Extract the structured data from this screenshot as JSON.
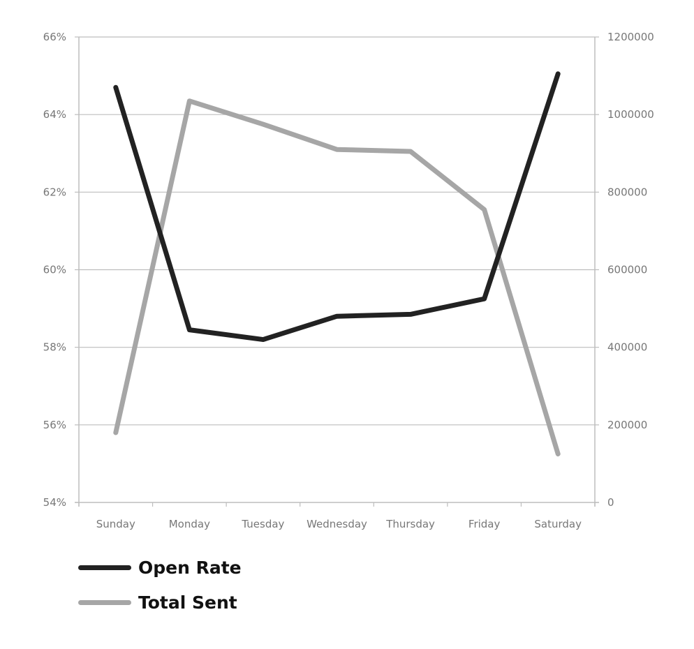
{
  "chart_data": {
    "type": "line",
    "categories": [
      "Sunday",
      "Monday",
      "Tuesday",
      "Wednesday",
      "Thursday",
      "Friday",
      "Saturday"
    ],
    "series": [
      {
        "name": "Open Rate",
        "axis": "left",
        "color": "#222222",
        "values": [
          64.7,
          58.45,
          58.2,
          58.8,
          58.85,
          59.25,
          65.05
        ]
      },
      {
        "name": "Total Sent",
        "axis": "right",
        "color": "#a6a6a6",
        "values": [
          180000,
          1035000,
          975000,
          910000,
          905000,
          755000,
          125000
        ]
      }
    ],
    "y_left": {
      "min": 54,
      "max": 66,
      "step": 2,
      "tick_labels": [
        "54%",
        "56%",
        "58%",
        "60%",
        "62%",
        "64%",
        "66%"
      ]
    },
    "y_right": {
      "min": 0,
      "max": 1200000,
      "step": 200000,
      "tick_labels": [
        "0",
        "200000",
        "400000",
        "600000",
        "800000",
        "1000000",
        "1200000"
      ]
    },
    "grid": true,
    "legend_position": "bottom-left"
  }
}
